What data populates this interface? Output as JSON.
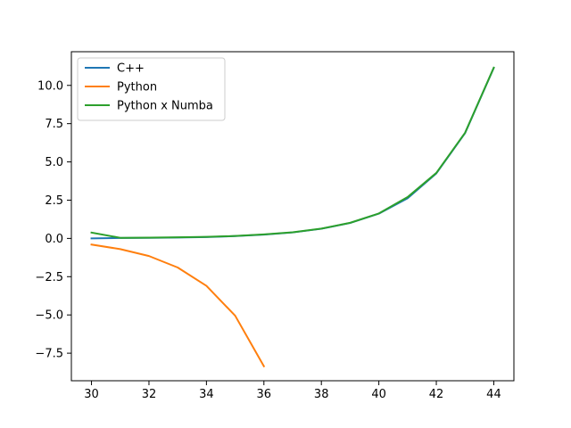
{
  "chart_data": {
    "type": "line",
    "title": "",
    "xlabel": "",
    "ylabel": "",
    "xlim": [
      29.3,
      44.7
    ],
    "ylim": [
      -9.3,
      12.2
    ],
    "xticks": [
      30,
      32,
      34,
      36,
      38,
      40,
      42,
      44
    ],
    "xtick_labels": [
      "30",
      "32",
      "34",
      "36",
      "38",
      "40",
      "42",
      "44"
    ],
    "yticks": [
      -7.5,
      -5.0,
      -2.5,
      0.0,
      2.5,
      5.0,
      7.5,
      10.0
    ],
    "ytick_labels": [
      "−7.5",
      "−5.0",
      "−2.5",
      "0.0",
      "2.5",
      "5.0",
      "7.5",
      "10.0"
    ],
    "grid": false,
    "legend_position": "upper-left",
    "series": [
      {
        "name": "C++",
        "color": "#1f77b4",
        "x": [
          30,
          31,
          32,
          33,
          34,
          35,
          36,
          37,
          38,
          39,
          40,
          41,
          42,
          43,
          44
        ],
        "y": [
          0.0,
          0.03,
          0.04,
          0.06,
          0.09,
          0.15,
          0.25,
          0.39,
          0.63,
          1.01,
          1.62,
          2.62,
          4.25,
          6.88,
          11.14
        ]
      },
      {
        "name": "Python",
        "color": "#ff7f0e",
        "x": [
          30,
          31,
          32,
          33,
          34,
          35,
          36
        ],
        "y": [
          -0.4,
          -0.7,
          -1.15,
          -1.9,
          -3.1,
          -5.05,
          -8.35
        ]
      },
      {
        "name": "Python x Numba",
        "color": "#2ca02c",
        "x": [
          30,
          31,
          32,
          33,
          34,
          35,
          36,
          37,
          38,
          39,
          40,
          41,
          42,
          43,
          44
        ],
        "y": [
          0.38,
          0.04,
          0.05,
          0.07,
          0.1,
          0.16,
          0.26,
          0.4,
          0.64,
          1.02,
          1.63,
          2.7,
          4.28,
          6.9,
          11.16
        ]
      }
    ]
  }
}
